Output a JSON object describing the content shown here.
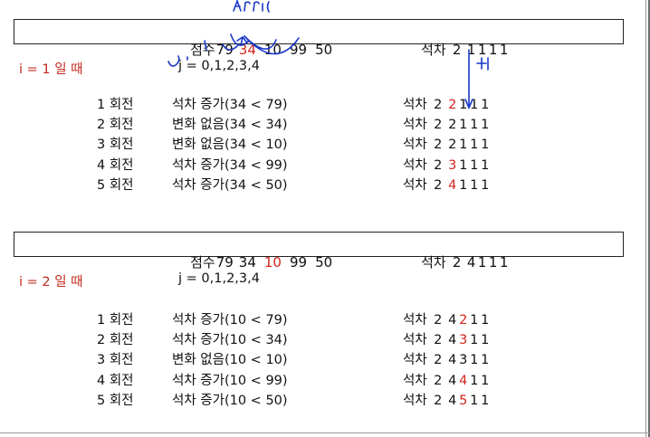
{
  "section1": {
    "header": {
      "score_label": "점수",
      "scores": [
        "79",
        "34",
        "10",
        "99",
        "50"
      ],
      "highlight_index": 1,
      "rank_label": "석차",
      "ranks": [
        "2",
        "1",
        "1",
        "1",
        "1"
      ]
    },
    "i_label": "i = 1 일 때",
    "j_label": "j = 0,1,2,3,4",
    "rounds": [
      {
        "round": "1 회전",
        "desc": "석차 증가(34 < 79)",
        "ranks": [
          "2",
          "2",
          "1",
          "1",
          "1"
        ],
        "red": 1
      },
      {
        "round": "2 회전",
        "desc": "변화 없음(34 < 34)",
        "ranks": [
          "2",
          "2",
          "1",
          "1",
          "1"
        ],
        "red": -1
      },
      {
        "round": "3 회전",
        "desc": "변화 없음(34 < 10)",
        "ranks": [
          "2",
          "2",
          "1",
          "1",
          "1"
        ],
        "red": -1
      },
      {
        "round": "4 회전",
        "desc": "석차 증가(34 < 99)",
        "ranks": [
          "2",
          "3",
          "1",
          "1",
          "1"
        ],
        "red": 1
      },
      {
        "round": "5 회전",
        "desc": "석차 증가(34 < 50)",
        "ranks": [
          "2",
          "4",
          "1",
          "1",
          "1"
        ],
        "red": 1
      }
    ],
    "handwriting": {
      "top": "arr[i]",
      "side": "+1"
    }
  },
  "section2": {
    "header": {
      "score_label": "점수",
      "scores": [
        "79",
        "34",
        "10",
        "99",
        "50"
      ],
      "highlight_index": 2,
      "rank_label": "석차",
      "ranks": [
        "2",
        "4",
        "1",
        "1",
        "1"
      ]
    },
    "i_label": "i = 2 일 때",
    "j_label": "j = 0,1,2,3,4",
    "rounds": [
      {
        "round": "1 회전",
        "desc": "석차 증가(10 < 79)",
        "ranks": [
          "2",
          "4",
          "2",
          "1",
          "1"
        ],
        "red": 2
      },
      {
        "round": "2 회전",
        "desc": "석차 증가(10 < 34)",
        "ranks": [
          "2",
          "4",
          "3",
          "1",
          "1"
        ],
        "red": 2
      },
      {
        "round": "3 회전",
        "desc": "변화 없음(10 < 10)",
        "ranks": [
          "2",
          "4",
          "3",
          "1",
          "1"
        ],
        "red": -1
      },
      {
        "round": "4 회전",
        "desc": "석차 증가(10 < 99)",
        "ranks": [
          "2",
          "4",
          "4",
          "1",
          "1"
        ],
        "red": 2
      },
      {
        "round": "5 회전",
        "desc": "석차 증가(10 < 50)",
        "ranks": [
          "2",
          "4",
          "5",
          "1",
          "1"
        ],
        "red": 2
      }
    ]
  },
  "colors": {
    "accent_red": "#d2261c",
    "label_red": "#c0281d",
    "ink_blue": "#1a37c8"
  }
}
